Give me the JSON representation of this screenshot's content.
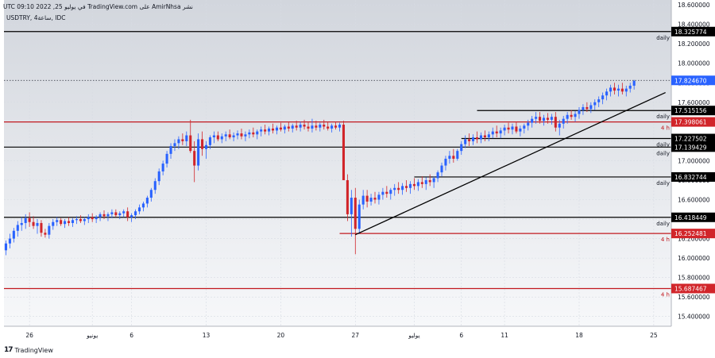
{
  "header": {
    "attribution": "نشر AmirNhsa على TradingView.com في يوليو 25, 2022 09:10 UTC",
    "symbol_line": "USDTRY, 4ساعة, IDC"
  },
  "footer": {
    "logo_text": "TradingView"
  },
  "colors": {
    "grid": "#d7dbe3",
    "up": "#2962ff",
    "down": "#d1252a",
    "black_line": "#000000",
    "red_line": "#c2191f",
    "price_tag": "#d1252a",
    "bg_top": "#d2d6dd",
    "bg_bottom": "#f7f8fa"
  },
  "chart_data": {
    "type": "candlestick",
    "title": "USDTRY, 4ساعة, IDC",
    "ylim": [
      15.3,
      18.65
    ],
    "y_ticks": [
      18.6,
      18.4,
      18.2,
      18.0,
      17.8,
      17.6,
      17.4,
      17.2,
      17.0,
      16.8,
      16.6,
      16.4,
      16.2,
      16.0,
      15.8,
      15.6,
      15.4
    ],
    "y_tick_labels": [
      "18.600000",
      "18.400000",
      "18.200000",
      "18.000000",
      "17.800000",
      "17.600000",
      "17.400000",
      "17.200000",
      "17.000000",
      "16.800000",
      "16.600000",
      "16.400000",
      "16.200000",
      "16.000000",
      "15.800000",
      "15.600000",
      "15.400000"
    ],
    "x_ticks": [
      {
        "bar": 6,
        "label": "26"
      },
      {
        "bar": 22,
        "label": "يونيو"
      },
      {
        "bar": 32,
        "label": "6"
      },
      {
        "bar": 51,
        "label": "13"
      },
      {
        "bar": 70,
        "label": "20"
      },
      {
        "bar": 89,
        "label": "27"
      },
      {
        "bar": 104,
        "label": "يوليو"
      },
      {
        "bar": 116,
        "label": "6"
      },
      {
        "bar": 127,
        "label": "11"
      },
      {
        "bar": 146,
        "label": "18"
      },
      {
        "bar": 165,
        "label": "25"
      }
    ],
    "total_bars": 172,
    "levels": [
      {
        "value": 18.325774,
        "label": "18.325774",
        "timeframe": "daily",
        "color": "black",
        "start_bar": 0
      },
      {
        "value": 17.515156,
        "label": "17.515156",
        "timeframe": "daily",
        "color": "black",
        "start_bar": 120
      },
      {
        "value": 17.398061,
        "label": "17.398061",
        "timeframe": "4 h",
        "color": "red",
        "start_bar": 0
      },
      {
        "value": 17.227502,
        "label": "17.227502",
        "timeframe": "daily",
        "color": "black",
        "start_bar": 116
      },
      {
        "value": 17.139429,
        "label": "17.139429",
        "timeframe": "daily",
        "color": "black",
        "start_bar": 0
      },
      {
        "value": 16.832744,
        "label": "16.832744",
        "timeframe": "daily",
        "color": "black",
        "start_bar": 104
      },
      {
        "value": 16.418449,
        "label": "16.418449",
        "timeframe": "daily",
        "color": "black",
        "start_bar": 0
      },
      {
        "value": 16.252481,
        "label": "16.252481",
        "timeframe": "4 h",
        "color": "red",
        "start_bar": 85
      },
      {
        "value": 15.687467,
        "label": "15.687467",
        "timeframe": "4 h",
        "color": "red",
        "start_bar": 0
      }
    ],
    "current_price": {
      "value": 17.82467,
      "label": "17.824670"
    },
    "trendline": {
      "from": {
        "bar": 89,
        "value": 16.24
      },
      "to": {
        "bar": 168,
        "value": 17.7
      }
    },
    "candles": [
      [
        16.08,
        16.18,
        16.03,
        16.15
      ],
      [
        16.15,
        16.25,
        16.1,
        16.2
      ],
      [
        16.2,
        16.31,
        16.16,
        16.28
      ],
      [
        16.28,
        16.38,
        16.22,
        16.34
      ],
      [
        16.34,
        16.42,
        16.28,
        16.36
      ],
      [
        16.36,
        16.45,
        16.3,
        16.41
      ],
      [
        16.41,
        16.47,
        16.32,
        16.37
      ],
      [
        16.37,
        16.43,
        16.3,
        16.33
      ],
      [
        16.33,
        16.4,
        16.25,
        16.36
      ],
      [
        16.36,
        16.39,
        16.22,
        16.26
      ],
      [
        16.26,
        16.3,
        16.21,
        16.24
      ],
      [
        16.24,
        16.36,
        16.2,
        16.33
      ],
      [
        16.33,
        16.4,
        16.29,
        16.37
      ],
      [
        16.37,
        16.42,
        16.33,
        16.39
      ],
      [
        16.39,
        16.41,
        16.33,
        16.35
      ],
      [
        16.35,
        16.4,
        16.31,
        16.38
      ],
      [
        16.38,
        16.42,
        16.33,
        16.36
      ],
      [
        16.36,
        16.41,
        16.32,
        16.39
      ],
      [
        16.39,
        16.43,
        16.35,
        16.4
      ],
      [
        16.4,
        16.44,
        16.36,
        16.38
      ],
      [
        16.38,
        16.42,
        16.34,
        16.4
      ],
      [
        16.4,
        16.45,
        16.36,
        16.42
      ],
      [
        16.42,
        16.46,
        16.37,
        16.4
      ],
      [
        16.4,
        16.44,
        16.36,
        16.42
      ],
      [
        16.42,
        16.47,
        16.38,
        16.45
      ],
      [
        16.45,
        16.49,
        16.4,
        16.43
      ],
      [
        16.43,
        16.47,
        16.38,
        16.45
      ],
      [
        16.45,
        16.5,
        16.41,
        16.47
      ],
      [
        16.47,
        16.5,
        16.42,
        16.44
      ],
      [
        16.44,
        16.48,
        16.4,
        16.46
      ],
      [
        16.46,
        16.5,
        16.42,
        16.48
      ],
      [
        16.48,
        16.52,
        16.38,
        16.42
      ],
      [
        16.42,
        16.46,
        16.37,
        16.44
      ],
      [
        16.44,
        16.5,
        16.4,
        16.48
      ],
      [
        16.48,
        16.55,
        16.45,
        16.52
      ],
      [
        16.52,
        16.58,
        16.48,
        16.56
      ],
      [
        16.56,
        16.64,
        16.52,
        16.62
      ],
      [
        16.62,
        16.72,
        16.58,
        16.7
      ],
      [
        16.7,
        16.82,
        16.66,
        16.79
      ],
      [
        16.79,
        16.92,
        16.75,
        16.89
      ],
      [
        16.89,
        17.0,
        16.85,
        16.97
      ],
      [
        16.97,
        17.1,
        16.93,
        17.07
      ],
      [
        17.07,
        17.18,
        17.02,
        17.15
      ],
      [
        17.15,
        17.22,
        17.1,
        17.18
      ],
      [
        17.18,
        17.25,
        17.12,
        17.22
      ],
      [
        17.22,
        17.28,
        17.16,
        17.2
      ],
      [
        17.2,
        17.3,
        17.15,
        17.26
      ],
      [
        17.26,
        17.42,
        17.08,
        17.1
      ],
      [
        17.1,
        17.2,
        16.78,
        16.95
      ],
      [
        16.95,
        17.28,
        16.9,
        17.22
      ],
      [
        17.22,
        17.3,
        17.05,
        17.12
      ],
      [
        17.12,
        17.2,
        17.02,
        17.16
      ],
      [
        17.16,
        17.26,
        17.12,
        17.24
      ],
      [
        17.24,
        17.3,
        17.18,
        17.26
      ],
      [
        17.26,
        17.3,
        17.2,
        17.22
      ],
      [
        17.22,
        17.28,
        17.18,
        17.25
      ],
      [
        17.25,
        17.3,
        17.2,
        17.27
      ],
      [
        17.27,
        17.32,
        17.22,
        17.24
      ],
      [
        17.24,
        17.29,
        17.2,
        17.26
      ],
      [
        17.26,
        17.31,
        17.22,
        17.28
      ],
      [
        17.28,
        17.33,
        17.22,
        17.25
      ],
      [
        17.25,
        17.3,
        17.2,
        17.27
      ],
      [
        17.27,
        17.32,
        17.23,
        17.29
      ],
      [
        17.29,
        17.34,
        17.24,
        17.27
      ],
      [
        17.27,
        17.32,
        17.22,
        17.3
      ],
      [
        17.3,
        17.35,
        17.25,
        17.32
      ],
      [
        17.32,
        17.37,
        17.27,
        17.3
      ],
      [
        17.3,
        17.35,
        17.26,
        17.33
      ],
      [
        17.33,
        17.38,
        17.28,
        17.31
      ],
      [
        17.31,
        17.36,
        17.27,
        17.34
      ],
      [
        17.34,
        17.39,
        17.3,
        17.32
      ],
      [
        17.32,
        17.37,
        17.28,
        17.35
      ],
      [
        17.35,
        17.4,
        17.3,
        17.33
      ],
      [
        17.33,
        17.38,
        17.29,
        17.36
      ],
      [
        17.36,
        17.41,
        17.31,
        17.34
      ],
      [
        17.34,
        17.4,
        17.3,
        17.37
      ],
      [
        17.37,
        17.42,
        17.32,
        17.35
      ],
      [
        17.35,
        17.4,
        17.3,
        17.33
      ],
      [
        17.33,
        17.43,
        17.29,
        17.36
      ],
      [
        17.36,
        17.41,
        17.31,
        17.34
      ],
      [
        17.34,
        17.39,
        17.3,
        17.37
      ],
      [
        17.37,
        17.42,
        17.32,
        17.35
      ],
      [
        17.35,
        17.4,
        17.31,
        17.33
      ],
      [
        17.33,
        17.38,
        17.29,
        17.36
      ],
      [
        17.36,
        17.4,
        17.32,
        17.34
      ],
      [
        17.34,
        17.39,
        17.3,
        17.37
      ],
      [
        17.37,
        17.41,
        16.8,
        16.8
      ],
      [
        16.8,
        16.86,
        16.38,
        16.45
      ],
      [
        16.45,
        16.7,
        16.22,
        16.62
      ],
      [
        16.62,
        16.72,
        16.04,
        16.3
      ],
      [
        16.3,
        16.6,
        16.25,
        16.55
      ],
      [
        16.55,
        16.7,
        16.5,
        16.64
      ],
      [
        16.64,
        16.7,
        16.52,
        16.58
      ],
      [
        16.58,
        16.66,
        16.54,
        16.62
      ],
      [
        16.62,
        16.68,
        16.56,
        16.6
      ],
      [
        16.6,
        16.68,
        16.55,
        16.65
      ],
      [
        16.65,
        16.72,
        16.6,
        16.68
      ],
      [
        16.68,
        16.74,
        16.62,
        16.66
      ],
      [
        16.66,
        16.72,
        16.6,
        16.7
      ],
      [
        16.7,
        16.76,
        16.64,
        16.72
      ],
      [
        16.72,
        16.78,
        16.66,
        16.7
      ],
      [
        16.7,
        16.77,
        16.65,
        16.74
      ],
      [
        16.74,
        16.8,
        16.68,
        16.72
      ],
      [
        16.72,
        16.79,
        16.66,
        16.76
      ],
      [
        16.76,
        16.82,
        16.7,
        16.74
      ],
      [
        16.74,
        16.81,
        16.69,
        16.78
      ],
      [
        16.78,
        16.84,
        16.72,
        16.76
      ],
      [
        16.76,
        16.83,
        16.7,
        16.8
      ],
      [
        16.8,
        16.86,
        16.74,
        16.78
      ],
      [
        16.78,
        16.84,
        16.72,
        16.82
      ],
      [
        16.82,
        16.9,
        16.78,
        16.88
      ],
      [
        16.88,
        16.98,
        16.84,
        16.95
      ],
      [
        16.95,
        17.05,
        16.9,
        17.02
      ],
      [
        17.02,
        17.1,
        16.97,
        17.05
      ],
      [
        17.05,
        17.12,
        16.98,
        17.02
      ],
      [
        17.02,
        17.12,
        17.0,
        17.1
      ],
      [
        17.1,
        17.2,
        17.06,
        17.17
      ],
      [
        17.17,
        17.26,
        17.13,
        17.22
      ],
      [
        17.22,
        17.28,
        17.15,
        17.2
      ],
      [
        17.2,
        17.27,
        17.16,
        17.24
      ],
      [
        17.24,
        17.3,
        17.18,
        17.22
      ],
      [
        17.22,
        17.29,
        17.18,
        17.26
      ],
      [
        17.26,
        17.31,
        17.2,
        17.24
      ],
      [
        17.24,
        17.3,
        17.2,
        17.27
      ],
      [
        17.27,
        17.34,
        17.23,
        17.3
      ],
      [
        17.3,
        17.36,
        17.24,
        17.28
      ],
      [
        17.28,
        17.34,
        17.23,
        17.31
      ],
      [
        17.31,
        17.37,
        17.26,
        17.34
      ],
      [
        17.34,
        17.39,
        17.28,
        17.32
      ],
      [
        17.32,
        17.38,
        17.27,
        17.35
      ],
      [
        17.35,
        17.4,
        17.28,
        17.3
      ],
      [
        17.3,
        17.36,
        17.25,
        17.33
      ],
      [
        17.33,
        17.38,
        17.28,
        17.36
      ],
      [
        17.36,
        17.42,
        17.31,
        17.39
      ],
      [
        17.39,
        17.46,
        17.34,
        17.43
      ],
      [
        17.43,
        17.5,
        17.38,
        17.45
      ],
      [
        17.45,
        17.5,
        17.38,
        17.41
      ],
      [
        17.41,
        17.47,
        17.36,
        17.44
      ],
      [
        17.44,
        17.49,
        17.38,
        17.42
      ],
      [
        17.42,
        17.48,
        17.37,
        17.45
      ],
      [
        17.45,
        17.5,
        17.3,
        17.34
      ],
      [
        17.34,
        17.42,
        17.26,
        17.38
      ],
      [
        17.38,
        17.46,
        17.33,
        17.43
      ],
      [
        17.43,
        17.5,
        17.38,
        17.47
      ],
      [
        17.47,
        17.52,
        17.42,
        17.45
      ],
      [
        17.45,
        17.51,
        17.4,
        17.48
      ],
      [
        17.48,
        17.55,
        17.43,
        17.52
      ],
      [
        17.52,
        17.58,
        17.47,
        17.55
      ],
      [
        17.55,
        17.6,
        17.5,
        17.53
      ],
      [
        17.53,
        17.6,
        17.49,
        17.57
      ],
      [
        17.57,
        17.63,
        17.52,
        17.6
      ],
      [
        17.6,
        17.66,
        17.55,
        17.63
      ],
      [
        17.63,
        17.7,
        17.58,
        17.67
      ],
      [
        17.67,
        17.74,
        17.62,
        17.71
      ],
      [
        17.71,
        17.78,
        17.66,
        17.75
      ],
      [
        17.75,
        17.8,
        17.68,
        17.72
      ],
      [
        17.72,
        17.78,
        17.66,
        17.74
      ],
      [
        17.74,
        17.8,
        17.68,
        17.71
      ],
      [
        17.71,
        17.77,
        17.66,
        17.74
      ],
      [
        17.74,
        17.8,
        17.7,
        17.77
      ],
      [
        17.77,
        17.83,
        17.73,
        17.82
      ]
    ]
  }
}
